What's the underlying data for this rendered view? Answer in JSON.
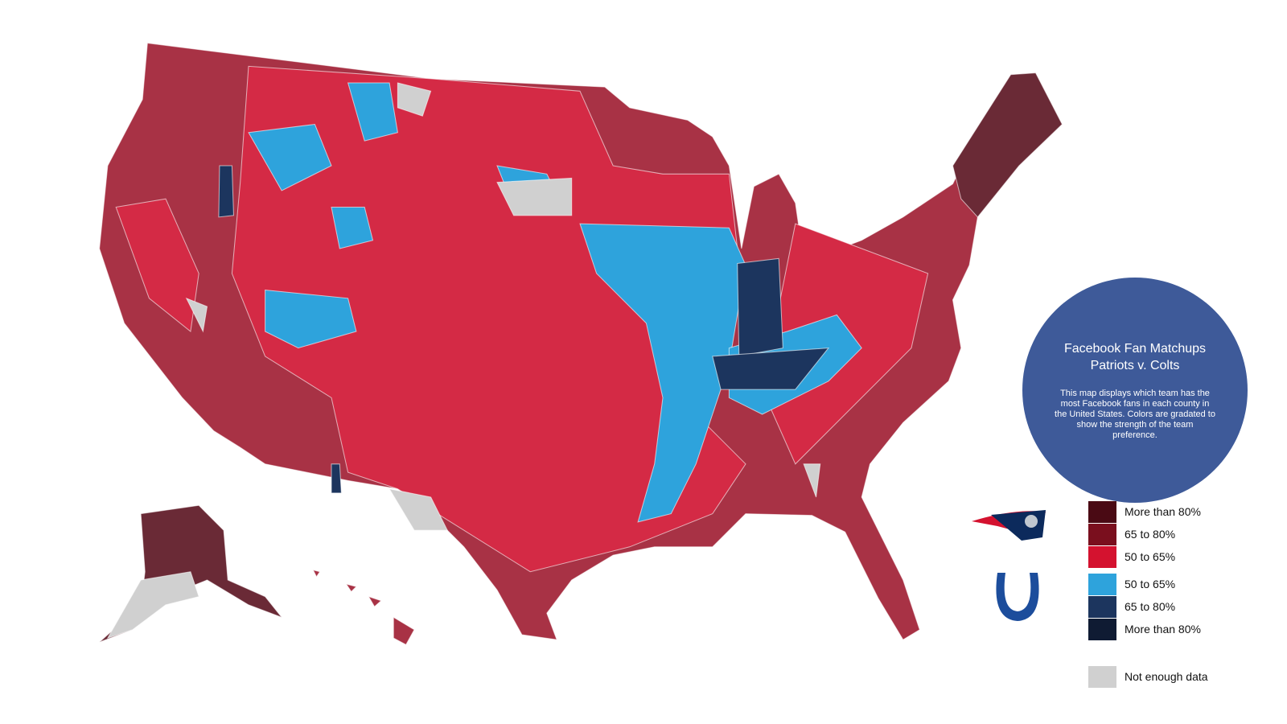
{
  "map": {
    "title": "Facebook Fan Matchups",
    "subtitle": "Patriots v. Colts",
    "description": "This map displays which team has the most Facebook fans in each county in the United States. Colors are gradated to show the strength of the team preference."
  },
  "legend": {
    "patriots": [
      {
        "label": "More than 80%",
        "color": "#4a0a14"
      },
      {
        "label": "65 to 80%",
        "color": "#7a0f1e"
      },
      {
        "label": "50 to 65%",
        "color": "#d4122f"
      }
    ],
    "colts": [
      {
        "label": "50 to 65%",
        "color": "#2ea3dc"
      },
      {
        "label": "65 to 80%",
        "color": "#1c355e"
      },
      {
        "label": "More than 80%",
        "color": "#0f1b33"
      }
    ],
    "no_data": {
      "label": "Not enough data",
      "color": "#d0d0d0"
    }
  }
}
